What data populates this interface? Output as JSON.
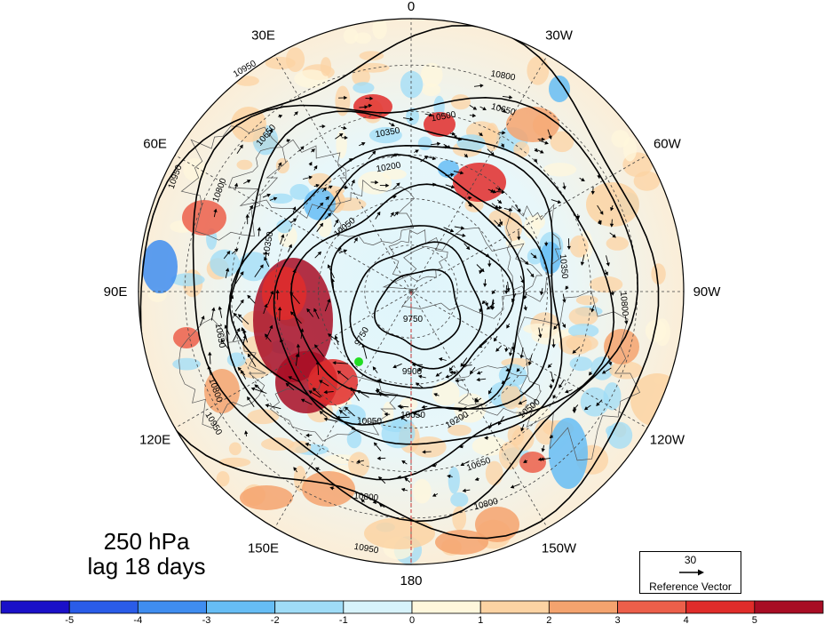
{
  "map": {
    "projection": "north-polar-stereographic",
    "title_line1": "250 hPa",
    "title_line2": "lag 18 days",
    "longitude_labels": [
      {
        "text": "0",
        "lon": 0
      },
      {
        "text": "30E",
        "lon": 30
      },
      {
        "text": "60E",
        "lon": 60
      },
      {
        "text": "90E",
        "lon": 90
      },
      {
        "text": "120E",
        "lon": 120
      },
      {
        "text": "150E",
        "lon": 150
      },
      {
        "text": "180",
        "lon": 180
      },
      {
        "text": "150W",
        "lon": -150
      },
      {
        "text": "120W",
        "lon": -120
      },
      {
        "text": "90W",
        "lon": -90
      },
      {
        "text": "60W",
        "lon": -60
      },
      {
        "text": "30W",
        "lon": -30
      }
    ],
    "contour_labels": [
      "10950",
      "10800",
      "10650",
      "10500",
      "10350",
      "10200",
      "10050",
      "9900",
      "9750"
    ],
    "contour_levels": [
      9750,
      9900,
      10050,
      10200,
      10350,
      10500,
      10650,
      10800,
      10950
    ],
    "marker_color": "#22dd22",
    "reference_vector": {
      "magnitude": "30",
      "label": "Reference Vector"
    }
  },
  "colorbar": {
    "ticks": [
      "-5",
      "-4",
      "-3",
      "-2",
      "-1",
      "0",
      "1",
      "2",
      "3",
      "4",
      "5"
    ],
    "colors": [
      "#1a10c8",
      "#2a5ce8",
      "#3f8df0",
      "#66bdf5",
      "#9fdcf7",
      "#d7f3fb",
      "#fff7dc",
      "#fcd3a3",
      "#f4a36e",
      "#ec5f4a",
      "#e02c2a",
      "#a80d24"
    ]
  }
}
